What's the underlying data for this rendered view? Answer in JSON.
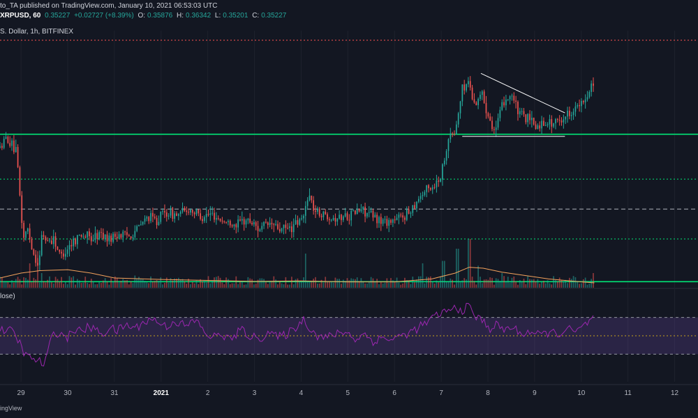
{
  "header": {
    "published": "to_TA published on TradingView.com, January 10, 2021 06:53:03 UTC",
    "symbol": "XRPUSD, 60",
    "last": "0.35227",
    "change": "+0.02727 (+8.39%)",
    "o_label": "O:",
    "o": "0.35876",
    "h_label": "H:",
    "h": "0.36342",
    "l_label": "L:",
    "l": "0.35201",
    "c_label": "C:",
    "c": "0.35227"
  },
  "legend": "S. Dollar, 1h, BITFINEX",
  "rsi_label": "lose)",
  "footer": "ingView",
  "colors": {
    "background": "#131722",
    "up": "#26a69a",
    "down": "#ef5350",
    "support": "#00e676",
    "resistance": "#ff5252",
    "rsi": "#9c27b0",
    "volume_ma": "#f5a35c"
  },
  "chart_data": {
    "type": "candlestick",
    "xaxis": {
      "ticks": [
        {
          "label": "29",
          "x": -3.0
        },
        {
          "label": "30",
          "x": -2.0
        },
        {
          "label": "31",
          "x": -1.0
        },
        {
          "label": "2021",
          "x": 0.0
        },
        {
          "label": "2",
          "x": 1.0
        },
        {
          "label": "3",
          "x": 2.0
        },
        {
          "label": "4",
          "x": 3.0
        },
        {
          "label": "5",
          "x": 4.0
        },
        {
          "label": "6",
          "x": 5.0
        },
        {
          "label": "7",
          "x": 6.0
        },
        {
          "label": "8",
          "x": 7.0
        },
        {
          "label": "9",
          "x": 8.0
        },
        {
          "label": "10",
          "x": 9.0
        },
        {
          "label": "11",
          "x": 10.0
        },
        {
          "label": "12",
          "x": 11.0
        }
      ],
      "range": [
        -3.45,
        11.5
      ]
    },
    "price_range": [
      0.155,
      0.395
    ],
    "path": [
      [
        -3.45,
        0.285
      ],
      [
        -3.3,
        0.295
      ],
      [
        -3.1,
        0.28
      ],
      [
        -2.95,
        0.2
      ],
      [
        -2.85,
        0.21
      ],
      [
        -2.75,
        0.188
      ],
      [
        -2.62,
        0.175
      ],
      [
        -2.55,
        0.205
      ],
      [
        -2.45,
        0.198
      ],
      [
        -2.3,
        0.2
      ],
      [
        -2.15,
        0.183
      ],
      [
        -2.0,
        0.192
      ],
      [
        -1.85,
        0.2
      ],
      [
        -1.7,
        0.205
      ],
      [
        -1.5,
        0.2
      ],
      [
        -1.3,
        0.205
      ],
      [
        -1.1,
        0.2
      ],
      [
        -0.9,
        0.205
      ],
      [
        -0.7,
        0.203
      ],
      [
        -0.5,
        0.21
      ],
      [
        -0.3,
        0.22
      ],
      [
        -0.1,
        0.218
      ],
      [
        0.1,
        0.225
      ],
      [
        0.35,
        0.222
      ],
      [
        0.6,
        0.228
      ],
      [
        0.85,
        0.222
      ],
      [
        1.1,
        0.223
      ],
      [
        1.35,
        0.216
      ],
      [
        1.6,
        0.214
      ],
      [
        1.85,
        0.218
      ],
      [
        2.1,
        0.21
      ],
      [
        2.35,
        0.214
      ],
      [
        2.6,
        0.208
      ],
      [
        2.85,
        0.212
      ],
      [
        3.05,
        0.22
      ],
      [
        3.15,
        0.243
      ],
      [
        3.3,
        0.226
      ],
      [
        3.55,
        0.222
      ],
      [
        3.8,
        0.22
      ],
      [
        4.05,
        0.223
      ],
      [
        4.3,
        0.228
      ],
      [
        4.55,
        0.22
      ],
      [
        4.8,
        0.216
      ],
      [
        5.05,
        0.218
      ],
      [
        5.3,
        0.225
      ],
      [
        5.5,
        0.238
      ],
      [
        5.65,
        0.245
      ],
      [
        5.85,
        0.25
      ],
      [
        6.0,
        0.26
      ],
      [
        6.15,
        0.295
      ],
      [
        6.3,
        0.3
      ],
      [
        6.45,
        0.34
      ],
      [
        6.6,
        0.348
      ],
      [
        6.7,
        0.325
      ],
      [
        6.85,
        0.338
      ],
      [
        7.0,
        0.318
      ],
      [
        7.15,
        0.3
      ],
      [
        7.35,
        0.33
      ],
      [
        7.5,
        0.336
      ],
      [
        7.65,
        0.318
      ],
      [
        7.85,
        0.312
      ],
      [
        8.05,
        0.305
      ],
      [
        8.25,
        0.31
      ],
      [
        8.45,
        0.308
      ],
      [
        8.65,
        0.315
      ],
      [
        8.85,
        0.322
      ],
      [
        9.05,
        0.326
      ],
      [
        9.2,
        0.344
      ],
      [
        9.28,
        0.349
      ]
    ],
    "horizontal_levels": [
      {
        "price": 0.386,
        "style": "dotted",
        "color": "#ff5252"
      },
      {
        "price": 0.298,
        "style": "solid",
        "color": "#00e676"
      },
      {
        "price": 0.256,
        "style": "dotted",
        "color": "#00e676"
      },
      {
        "price": 0.228,
        "style": "dashed",
        "color": "#b2b5be"
      },
      {
        "price": 0.2,
        "style": "dotted",
        "color": "#00e676"
      },
      {
        "price": 0.16,
        "style": "solid",
        "color": "#00e676"
      }
    ],
    "trendlines": [
      {
        "from": [
          6.85,
          0.355
        ],
        "to": [
          8.65,
          0.318
        ],
        "color": "#ffffff"
      },
      {
        "from": [
          6.45,
          0.296
        ],
        "to": [
          8.65,
          0.296
        ],
        "color": "#ffffff"
      }
    ],
    "volume": {
      "spikes": [
        [
          -2.8,
          0.5
        ],
        [
          -2.65,
          0.75
        ],
        [
          -2.55,
          0.3
        ],
        [
          -0.55,
          0.25
        ],
        [
          3.1,
          0.7
        ],
        [
          5.6,
          0.5
        ],
        [
          6.05,
          0.55
        ],
        [
          6.35,
          0.8
        ],
        [
          6.6,
          1.0
        ],
        [
          6.8,
          0.45
        ],
        [
          7.3,
          0.3
        ],
        [
          9.25,
          0.3
        ]
      ],
      "ma_path": [
        [
          -3.45,
          0.2
        ],
        [
          -3.0,
          0.3
        ],
        [
          -2.6,
          0.35
        ],
        [
          -2.0,
          0.37
        ],
        [
          -1.5,
          0.3
        ],
        [
          -1.0,
          0.2
        ],
        [
          0.0,
          0.17
        ],
        [
          1.0,
          0.15
        ],
        [
          2.0,
          0.13
        ],
        [
          3.0,
          0.14
        ],
        [
          4.0,
          0.12
        ],
        [
          5.0,
          0.12
        ],
        [
          5.8,
          0.18
        ],
        [
          6.3,
          0.3
        ],
        [
          6.6,
          0.42
        ],
        [
          6.9,
          0.4
        ],
        [
          7.3,
          0.32
        ],
        [
          7.8,
          0.25
        ],
        [
          8.3,
          0.18
        ],
        [
          9.0,
          0.12
        ],
        [
          9.28,
          0.1
        ]
      ]
    },
    "rsi": {
      "range": [
        0,
        100
      ],
      "bands": [
        70,
        50,
        30
      ],
      "path": [
        [
          -3.45,
          55
        ],
        [
          -3.3,
          58
        ],
        [
          -3.15,
          52
        ],
        [
          -3.0,
          40
        ],
        [
          -2.9,
          28
        ],
        [
          -2.75,
          25
        ],
        [
          -2.6,
          22
        ],
        [
          -2.5,
          18
        ],
        [
          -2.42,
          33
        ],
        [
          -2.3,
          55
        ],
        [
          -2.15,
          52
        ],
        [
          -2.0,
          48
        ],
        [
          -1.85,
          58
        ],
        [
          -1.7,
          54
        ],
        [
          -1.55,
          60
        ],
        [
          -1.4,
          56
        ],
        [
          -1.25,
          52
        ],
        [
          -1.1,
          59
        ],
        [
          -0.95,
          55
        ],
        [
          -0.75,
          62
        ],
        [
          -0.55,
          58
        ],
        [
          -0.35,
          66
        ],
        [
          -0.15,
          68
        ],
        [
          0.1,
          60
        ],
        [
          0.3,
          66
        ],
        [
          0.55,
          60
        ],
        [
          0.75,
          68
        ],
        [
          0.9,
          55
        ],
        [
          1.1,
          48
        ],
        [
          1.3,
          52
        ],
        [
          1.5,
          45
        ],
        [
          1.7,
          57
        ],
        [
          1.9,
          50
        ],
        [
          2.1,
          46
        ],
        [
          2.3,
          55
        ],
        [
          2.5,
          48
        ],
        [
          2.7,
          52
        ],
        [
          2.9,
          60
        ],
        [
          3.05,
          68
        ],
        [
          3.2,
          58
        ],
        [
          3.35,
          50
        ],
        [
          3.55,
          48
        ],
        [
          3.75,
          52
        ],
        [
          3.95,
          55
        ],
        [
          4.15,
          46
        ],
        [
          4.35,
          52
        ],
        [
          4.55,
          44
        ],
        [
          4.75,
          48
        ],
        [
          4.95,
          46
        ],
        [
          5.15,
          50
        ],
        [
          5.35,
          54
        ],
        [
          5.55,
          60
        ],
        [
          5.75,
          66
        ],
        [
          5.95,
          74
        ],
        [
          6.1,
          76
        ],
        [
          6.3,
          80
        ],
        [
          6.45,
          78
        ],
        [
          6.6,
          82
        ],
        [
          6.75,
          70
        ],
        [
          6.9,
          66
        ],
        [
          7.05,
          58
        ],
        [
          7.2,
          62
        ],
        [
          7.35,
          56
        ],
        [
          7.5,
          60
        ],
        [
          7.7,
          52
        ],
        [
          7.9,
          55
        ],
        [
          8.1,
          50
        ],
        [
          8.3,
          54
        ],
        [
          8.5,
          52
        ],
        [
          8.7,
          57
        ],
        [
          8.9,
          54
        ],
        [
          9.05,
          60
        ],
        [
          9.18,
          66
        ],
        [
          9.28,
          70
        ]
      ]
    }
  }
}
